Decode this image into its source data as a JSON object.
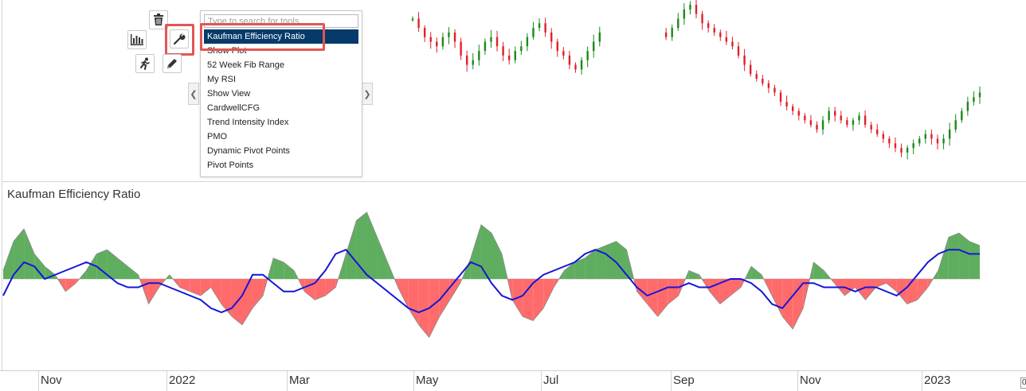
{
  "toolbar": {
    "buttons": [
      {
        "name": "delete-button",
        "icon": "trash-icon"
      },
      {
        "name": "indicators-button",
        "icon": "bar-chart-icon"
      },
      {
        "name": "tools-button",
        "icon": "wrench-icon",
        "highlighted": true
      },
      {
        "name": "run-button",
        "icon": "running-person-icon"
      },
      {
        "name": "draw-button",
        "icon": "pencil-icon"
      }
    ]
  },
  "tool_menu": {
    "search_placeholder": "Type to search for tools",
    "items": [
      {
        "label": "Kaufman Efficiency Ratio",
        "selected": true
      },
      {
        "label": "Show Plot"
      },
      {
        "label": "52 Week Fib Range"
      },
      {
        "label": "My RSI"
      },
      {
        "label": "Show View"
      },
      {
        "label": "CardwellCFG"
      },
      {
        "label": "Trend Intensity Index"
      },
      {
        "label": "PMO"
      },
      {
        "label": "Dynamic Pivot Points"
      },
      {
        "label": "Pivot Points"
      }
    ],
    "scroll_left": "❮",
    "scroll_right": "❯"
  },
  "indicator_panel": {
    "title": "Kaufman Efficiency Ratio"
  },
  "x_axis": {
    "labels": [
      "Nov",
      "2022",
      "Mar",
      "May",
      "Jul",
      "Sep",
      "Nov",
      "2023"
    ]
  },
  "corner_label": "0",
  "colors": {
    "up_candle": "#1a8a1a",
    "down_candle": "#e0202a",
    "positive_fill": "#5fae5f",
    "negative_fill": "#ff6b6b",
    "signal_line": "#1515d8",
    "selected_item_bg": "#063a6a",
    "highlight_border": "#e35555"
  },
  "chart_data": [
    {
      "type": "candlestick",
      "description_series": "price",
      "close": [
        88,
        86,
        84,
        83,
        82,
        84,
        85,
        83,
        80,
        78,
        79,
        81,
        83,
        84,
        82,
        80,
        79,
        81,
        82,
        84,
        86,
        87,
        85,
        83,
        81,
        80,
        78,
        77,
        79,
        81,
        83,
        85,
        86,
        84,
        82,
        80,
        82,
        84,
        86,
        88,
        87,
        85,
        84,
        86,
        88,
        90,
        91,
        89,
        87,
        86,
        85,
        84,
        83,
        82,
        80,
        78,
        76,
        75,
        74,
        73,
        72,
        70,
        69,
        68,
        67,
        66,
        65,
        64,
        66,
        68,
        67,
        66,
        65,
        66,
        67,
        65,
        64,
        63,
        62,
        61,
        60,
        59,
        60,
        61,
        62,
        63,
        62,
        61,
        62,
        64,
        66,
        68,
        70,
        71,
        72
      ]
    },
    {
      "type": "area",
      "title": "Kaufman Efficiency Ratio",
      "baseline": 0,
      "ylim": [
        -1,
        1
      ],
      "series": [
        {
          "values": [
            0.1,
            0.45,
            0.6,
            0.3,
            0.15,
            0.05,
            -0.15,
            -0.05,
            0.1,
            0.3,
            0.35,
            0.25,
            0.15,
            0.05,
            -0.3,
            -0.1,
            0.05,
            -0.1,
            -0.15,
            -0.2,
            -0.1,
            -0.3,
            -0.45,
            -0.55,
            -0.35,
            -0.2,
            0.25,
            0.2,
            0.1,
            -0.15,
            -0.25,
            -0.2,
            -0.1,
            0.3,
            0.7,
            0.8,
            0.5,
            0.2,
            -0.1,
            -0.35,
            -0.55,
            -0.7,
            -0.45,
            -0.25,
            -0.05,
            0.25,
            0.65,
            0.55,
            0.3,
            -0.25,
            -0.45,
            -0.5,
            -0.35,
            -0.1,
            0.1,
            0.2,
            0.25,
            0.35,
            0.4,
            0.45,
            0.35,
            -0.15,
            -0.3,
            -0.45,
            -0.3,
            -0.2,
            0.1,
            0.05,
            -0.15,
            -0.3,
            -0.2,
            -0.1,
            0.15,
            0.05,
            -0.2,
            -0.45,
            -0.6,
            -0.35,
            0.2,
            0.1,
            -0.05,
            -0.2,
            -0.1,
            -0.25,
            -0.1,
            -0.05,
            -0.15,
            -0.3,
            -0.25,
            -0.1,
            0.1,
            0.5,
            0.55,
            0.45,
            0.4
          ]
        },
        {
          "name": "signal",
          "values": [
            -0.2,
            0.05,
            0.2,
            0.15,
            0.0,
            0.05,
            0.1,
            0.15,
            0.2,
            0.15,
            0.05,
            -0.05,
            -0.1,
            -0.1,
            -0.05,
            -0.05,
            -0.1,
            -0.15,
            -0.2,
            -0.25,
            -0.35,
            -0.4,
            -0.35,
            -0.2,
            0.05,
            0.05,
            -0.05,
            -0.15,
            -0.15,
            -0.1,
            -0.05,
            0.1,
            0.3,
            0.35,
            0.2,
            0.05,
            -0.05,
            -0.15,
            -0.25,
            -0.35,
            -0.4,
            -0.35,
            -0.25,
            -0.1,
            0.05,
            0.2,
            0.15,
            -0.05,
            -0.2,
            -0.25,
            -0.2,
            -0.05,
            0.05,
            0.1,
            0.15,
            0.2,
            0.3,
            0.35,
            0.3,
            0.2,
            0.05,
            -0.1,
            -0.2,
            -0.15,
            -0.1,
            -0.1,
            -0.05,
            -0.1,
            -0.1,
            -0.05,
            0.0,
            0.0,
            -0.05,
            -0.15,
            -0.3,
            -0.35,
            -0.2,
            -0.05,
            -0.05,
            -0.1,
            -0.1,
            -0.1,
            -0.15,
            -0.1,
            -0.1,
            -0.15,
            -0.2,
            -0.1,
            0.05,
            0.2,
            0.3,
            0.35,
            0.35,
            0.3,
            0.3
          ]
        }
      ]
    }
  ]
}
